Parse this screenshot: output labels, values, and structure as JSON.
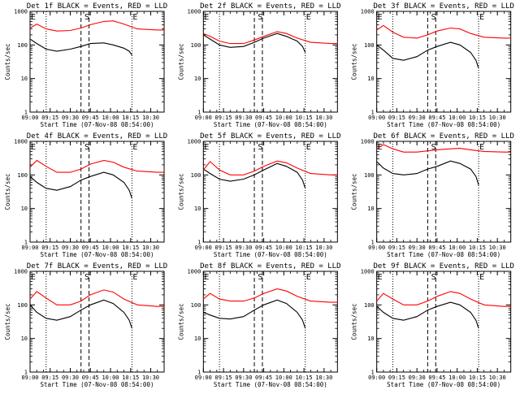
{
  "chart_data": [
    {
      "type": "line",
      "title": "Det 1f BLACK = Events, RED = LLD",
      "xlabel": "Start Time (07-Nov-08 08:54:00)",
      "ylabel": "Counts/sec",
      "scale": "log",
      "ylim": [
        1,
        1000
      ],
      "y_tick_labels": [
        "1",
        "10",
        "100",
        "1000"
      ],
      "x_tick_labels": [
        "09:00",
        "09:15",
        "09:30",
        "09:45",
        "10:00",
        "10:15",
        "10:30"
      ],
      "xlim_minutes": [
        0,
        100
      ],
      "x_tick_minutes": [
        0,
        15,
        30,
        45,
        60,
        75,
        90
      ],
      "markers": [
        {
          "label": "E",
          "minutes": 0
        },
        {
          "label": "S",
          "minutes": 40
        },
        {
          "label": "E",
          "minutes": 76
        }
      ],
      "vlines": {
        "dotted": [
          12,
          76
        ],
        "dashed": [
          38,
          44
        ]
      },
      "series": [
        {
          "name": "BLACK = Events",
          "color": "#000000",
          "x": [
            0,
            5,
            12,
            20,
            30,
            38,
            45,
            55,
            62,
            70,
            74,
            76
          ],
          "y": [
            150,
            110,
            75,
            65,
            75,
            90,
            110,
            115,
            100,
            80,
            65,
            50
          ]
        },
        {
          "name": "RED = LLD",
          "color": "#ff0000",
          "x": [
            0,
            5,
            12,
            20,
            30,
            38,
            45,
            55,
            62,
            70,
            80,
            95,
            100
          ],
          "y": [
            320,
            420,
            300,
            260,
            270,
            320,
            400,
            500,
            520,
            420,
            300,
            280,
            280
          ]
        }
      ]
    },
    {
      "type": "line",
      "title": "Det 2f BLACK = Events, RED = LLD",
      "xlabel": "Start Time (07-Nov-08 08:54:00)",
      "ylabel": "Counts/sec",
      "scale": "log",
      "ylim": [
        1,
        1000
      ],
      "y_tick_labels": [
        "1",
        "10",
        "100",
        "1000"
      ],
      "x_tick_labels": [
        "09:00",
        "09:15",
        "09:30",
        "09:45",
        "10:00",
        "10:15",
        "10:30"
      ],
      "xlim_minutes": [
        0,
        100
      ],
      "x_tick_minutes": [
        0,
        15,
        30,
        45,
        60,
        75,
        90
      ],
      "markers": [
        {
          "label": "E",
          "minutes": 0
        },
        {
          "label": "S",
          "minutes": 40
        },
        {
          "label": "E",
          "minutes": 76
        }
      ],
      "vlines": {
        "dotted": [
          12,
          76
        ],
        "dashed": [
          38,
          44
        ]
      },
      "series": [
        {
          "name": "BLACK = Events",
          "color": "#000000",
          "x": [
            0,
            5,
            12,
            20,
            30,
            38,
            45,
            55,
            62,
            70,
            74,
            76
          ],
          "y": [
            200,
            150,
            100,
            85,
            90,
            120,
            160,
            220,
            180,
            130,
            90,
            60
          ]
        },
        {
          "name": "RED = LLD",
          "color": "#ff0000",
          "x": [
            0,
            5,
            12,
            20,
            30,
            38,
            45,
            55,
            62,
            70,
            80,
            95,
            100
          ],
          "y": [
            220,
            180,
            130,
            110,
            110,
            140,
            180,
            250,
            220,
            160,
            120,
            110,
            110
          ]
        }
      ]
    },
    {
      "type": "line",
      "title": "Det 3f BLACK = Events, RED = LLD",
      "xlabel": "Start Time (07-Nov-08 08:54:00)",
      "ylabel": "Counts/sec",
      "scale": "log",
      "ylim": [
        1,
        1000
      ],
      "y_tick_labels": [
        "1",
        "10",
        "100",
        "1000"
      ],
      "x_tick_labels": [
        "09:00",
        "09:15",
        "09:30",
        "09:45",
        "10:00",
        "10:15",
        "10:30"
      ],
      "xlim_minutes": [
        0,
        100
      ],
      "x_tick_minutes": [
        0,
        15,
        30,
        45,
        60,
        75,
        90
      ],
      "markers": [
        {
          "label": "E",
          "minutes": 0
        },
        {
          "label": "S",
          "minutes": 40
        },
        {
          "label": "E",
          "minutes": 76
        }
      ],
      "vlines": {
        "dotted": [
          12,
          76
        ],
        "dashed": [
          38,
          44
        ]
      },
      "series": [
        {
          "name": "BLACK = Events",
          "color": "#000000",
          "x": [
            0,
            5,
            12,
            20,
            30,
            38,
            45,
            55,
            62,
            70,
            74,
            76
          ],
          "y": [
            100,
            70,
            40,
            35,
            45,
            70,
            90,
            120,
            100,
            60,
            35,
            20
          ]
        },
        {
          "name": "RED = LLD",
          "color": "#ff0000",
          "x": [
            0,
            5,
            12,
            20,
            30,
            38,
            45,
            55,
            62,
            70,
            80,
            95,
            100
          ],
          "y": [
            280,
            380,
            240,
            170,
            160,
            200,
            260,
            320,
            300,
            220,
            170,
            160,
            160
          ]
        }
      ]
    },
    {
      "type": "line",
      "title": "Det 4f BLACK = Events, RED = LLD",
      "xlabel": "Start Time (07-Nov-08 08:54:00)",
      "ylabel": "Counts/sec",
      "scale": "log",
      "ylim": [
        1,
        1000
      ],
      "y_tick_labels": [
        "1",
        "10",
        "100",
        "1000"
      ],
      "x_tick_labels": [
        "09:00",
        "09:15",
        "09:30",
        "09:45",
        "10:00",
        "10:15",
        "10:30"
      ],
      "xlim_minutes": [
        0,
        100
      ],
      "x_tick_minutes": [
        0,
        15,
        30,
        45,
        60,
        75,
        90
      ],
      "markers": [
        {
          "label": "E",
          "minutes": 0
        },
        {
          "label": "S",
          "minutes": 40
        },
        {
          "label": "E",
          "minutes": 76
        }
      ],
      "vlines": {
        "dotted": [
          12,
          76
        ],
        "dashed": [
          38,
          44
        ]
      },
      "series": [
        {
          "name": "BLACK = Events",
          "color": "#000000",
          "x": [
            0,
            5,
            12,
            20,
            30,
            38,
            45,
            55,
            62,
            70,
            74,
            76
          ],
          "y": [
            90,
            60,
            40,
            35,
            45,
            70,
            90,
            120,
            100,
            60,
            35,
            20
          ]
        },
        {
          "name": "RED = LLD",
          "color": "#ff0000",
          "x": [
            0,
            5,
            12,
            20,
            30,
            38,
            45,
            55,
            62,
            70,
            80,
            95,
            100
          ],
          "y": [
            170,
            270,
            180,
            120,
            120,
            150,
            210,
            270,
            240,
            170,
            130,
            120,
            120
          ]
        }
      ]
    },
    {
      "type": "line",
      "title": "Det 5f BLACK = Events, RED = LLD",
      "xlabel": "Start Time (07-Nov-08 08:54:00)",
      "ylabel": "Counts/sec",
      "scale": "log",
      "ylim": [
        1,
        1000
      ],
      "y_tick_labels": [
        "1",
        "10",
        "100",
        "1000"
      ],
      "x_tick_labels": [
        "09:00",
        "09:15",
        "09:30",
        "09:45",
        "10:00",
        "10:15",
        "10:30"
      ],
      "xlim_minutes": [
        0,
        100
      ],
      "x_tick_minutes": [
        0,
        15,
        30,
        45,
        60,
        75,
        90
      ],
      "markers": [
        {
          "label": "E",
          "minutes": 0
        },
        {
          "label": "S",
          "minutes": 40
        },
        {
          "label": "E",
          "minutes": 76
        }
      ],
      "vlines": {
        "dotted": [
          12,
          76
        ],
        "dashed": [
          38,
          44
        ]
      },
      "series": [
        {
          "name": "BLACK = Events",
          "color": "#000000",
          "x": [
            0,
            5,
            12,
            20,
            30,
            38,
            45,
            55,
            62,
            70,
            74,
            76
          ],
          "y": [
            150,
            110,
            75,
            65,
            75,
            100,
            140,
            220,
            180,
            120,
            70,
            40
          ]
        },
        {
          "name": "RED = LLD",
          "color": "#ff0000",
          "x": [
            0,
            5,
            12,
            20,
            30,
            38,
            45,
            55,
            62,
            70,
            80,
            95,
            100
          ],
          "y": [
            140,
            250,
            140,
            100,
            100,
            130,
            180,
            260,
            230,
            160,
            110,
            100,
            100
          ]
        }
      ]
    },
    {
      "type": "line",
      "title": "Det 6f BLACK = Events, RED = LLD",
      "xlabel": "Start Time (07-Nov-08 08:54:00)",
      "ylabel": "Counts/sec",
      "scale": "log",
      "ylim": [
        1,
        1000
      ],
      "y_tick_labels": [
        "1",
        "10",
        "100",
        "1000"
      ],
      "x_tick_labels": [
        "09:00",
        "09:15",
        "09:30",
        "09:45",
        "10:00",
        "10:15",
        "10:30"
      ],
      "xlim_minutes": [
        0,
        100
      ],
      "x_tick_minutes": [
        0,
        15,
        30,
        45,
        60,
        75,
        90
      ],
      "markers": [
        {
          "label": "E",
          "minutes": 0
        },
        {
          "label": "S",
          "minutes": 40
        },
        {
          "label": "E",
          "minutes": 76
        }
      ],
      "vlines": {
        "dotted": [
          12,
          76
        ],
        "dashed": [
          38,
          44
        ]
      },
      "series": [
        {
          "name": "BLACK = Events",
          "color": "#000000",
          "x": [
            0,
            5,
            12,
            20,
            30,
            38,
            45,
            55,
            62,
            70,
            74,
            76
          ],
          "y": [
            250,
            160,
            110,
            100,
            110,
            150,
            180,
            260,
            220,
            150,
            90,
            50
          ]
        },
        {
          "name": "RED = LLD",
          "color": "#ff0000",
          "x": [
            0,
            5,
            12,
            20,
            30,
            38,
            45,
            55,
            62,
            70,
            80,
            95,
            100
          ],
          "y": [
            600,
            800,
            600,
            480,
            480,
            520,
            560,
            600,
            620,
            560,
            500,
            480,
            480
          ]
        }
      ]
    },
    {
      "type": "line",
      "title": "Det 7f BLACK = Events, RED = LLD",
      "xlabel": "Start Time (07-Nov-08 08:54:00)",
      "ylabel": "Counts/sec",
      "scale": "log",
      "ylim": [
        1,
        1000
      ],
      "y_tick_labels": [
        "1",
        "10",
        "100",
        "1000"
      ],
      "x_tick_labels": [
        "09:00",
        "09:15",
        "09:30",
        "09:45",
        "10:00",
        "10:15",
        "10:30"
      ],
      "xlim_minutes": [
        0,
        100
      ],
      "x_tick_minutes": [
        0,
        15,
        30,
        45,
        60,
        75,
        90
      ],
      "markers": [
        {
          "label": "E",
          "minutes": 0
        },
        {
          "label": "S",
          "minutes": 40
        },
        {
          "label": "E",
          "minutes": 76
        }
      ],
      "vlines": {
        "dotted": [
          12,
          76
        ],
        "dashed": [
          38,
          44
        ]
      },
      "series": [
        {
          "name": "BLACK = Events",
          "color": "#000000",
          "x": [
            0,
            5,
            12,
            20,
            30,
            38,
            45,
            55,
            62,
            70,
            74,
            76
          ],
          "y": [
            100,
            60,
            40,
            35,
            45,
            70,
            100,
            140,
            110,
            60,
            35,
            20
          ]
        },
        {
          "name": "RED = LLD",
          "color": "#ff0000",
          "x": [
            0,
            5,
            12,
            20,
            30,
            38,
            45,
            55,
            62,
            70,
            80,
            95,
            100
          ],
          "y": [
            150,
            250,
            160,
            100,
            100,
            130,
            200,
            280,
            240,
            150,
            100,
            90,
            90
          ]
        }
      ]
    },
    {
      "type": "line",
      "title": "Det 8f BLACK = Events, RED = LLD",
      "xlabel": "Start Time (07-Nov-08 08:54:00)",
      "ylabel": "Counts/sec",
      "scale": "log",
      "ylim": [
        1,
        1000
      ],
      "y_tick_labels": [
        "1",
        "10",
        "100",
        "1000"
      ],
      "x_tick_labels": [
        "09:00",
        "09:15",
        "09:30",
        "09:45",
        "10:00",
        "10:15",
        "10:30"
      ],
      "xlim_minutes": [
        0,
        100
      ],
      "x_tick_minutes": [
        0,
        15,
        30,
        45,
        60,
        75,
        90
      ],
      "markers": [
        {
          "label": "E",
          "minutes": 0
        },
        {
          "label": "S",
          "minutes": 40
        },
        {
          "label": "E",
          "minutes": 76
        }
      ],
      "vlines": {
        "dotted": [
          12,
          76
        ],
        "dashed": [
          38,
          44
        ]
      },
      "series": [
        {
          "name": "BLACK = Events",
          "color": "#000000",
          "x": [
            0,
            5,
            12,
            20,
            30,
            38,
            45,
            55,
            62,
            70,
            74,
            76
          ],
          "y": [
            60,
            50,
            40,
            38,
            45,
            70,
            100,
            140,
            110,
            60,
            35,
            20
          ]
        },
        {
          "name": "RED = LLD",
          "color": "#ff0000",
          "x": [
            0,
            5,
            12,
            20,
            30,
            38,
            45,
            55,
            62,
            70,
            80,
            95,
            100
          ],
          "y": [
            150,
            220,
            150,
            130,
            130,
            160,
            220,
            300,
            260,
            180,
            130,
            120,
            120
          ]
        }
      ]
    },
    {
      "type": "line",
      "title": "Det 9f BLACK = Events, RED = LLD",
      "xlabel": "Start Time (07-Nov-08 08:54:00)",
      "ylabel": "Counts/sec",
      "scale": "log",
      "ylim": [
        1,
        1000
      ],
      "y_tick_labels": [
        "1",
        "10",
        "100",
        "1000"
      ],
      "x_tick_labels": [
        "09:00",
        "09:15",
        "09:30",
        "09:45",
        "10:00",
        "10:15",
        "10:30"
      ],
      "xlim_minutes": [
        0,
        100
      ],
      "x_tick_minutes": [
        0,
        15,
        30,
        45,
        60,
        75,
        90
      ],
      "markers": [
        {
          "label": "E",
          "minutes": 0
        },
        {
          "label": "S",
          "minutes": 40
        },
        {
          "label": "E",
          "minutes": 76
        }
      ],
      "vlines": {
        "dotted": [
          12,
          76
        ],
        "dashed": [
          38,
          44
        ]
      },
      "series": [
        {
          "name": "BLACK = Events",
          "color": "#000000",
          "x": [
            0,
            5,
            12,
            20,
            30,
            38,
            45,
            55,
            62,
            70,
            74,
            76
          ],
          "y": [
            90,
            60,
            40,
            35,
            45,
            70,
            90,
            120,
            100,
            60,
            35,
            20
          ]
        },
        {
          "name": "RED = LLD",
          "color": "#ff0000",
          "x": [
            0,
            5,
            12,
            20,
            30,
            38,
            45,
            55,
            62,
            70,
            80,
            95,
            100
          ],
          "y": [
            130,
            220,
            150,
            100,
            100,
            130,
            180,
            250,
            220,
            150,
            100,
            90,
            90
          ]
        }
      ]
    }
  ]
}
